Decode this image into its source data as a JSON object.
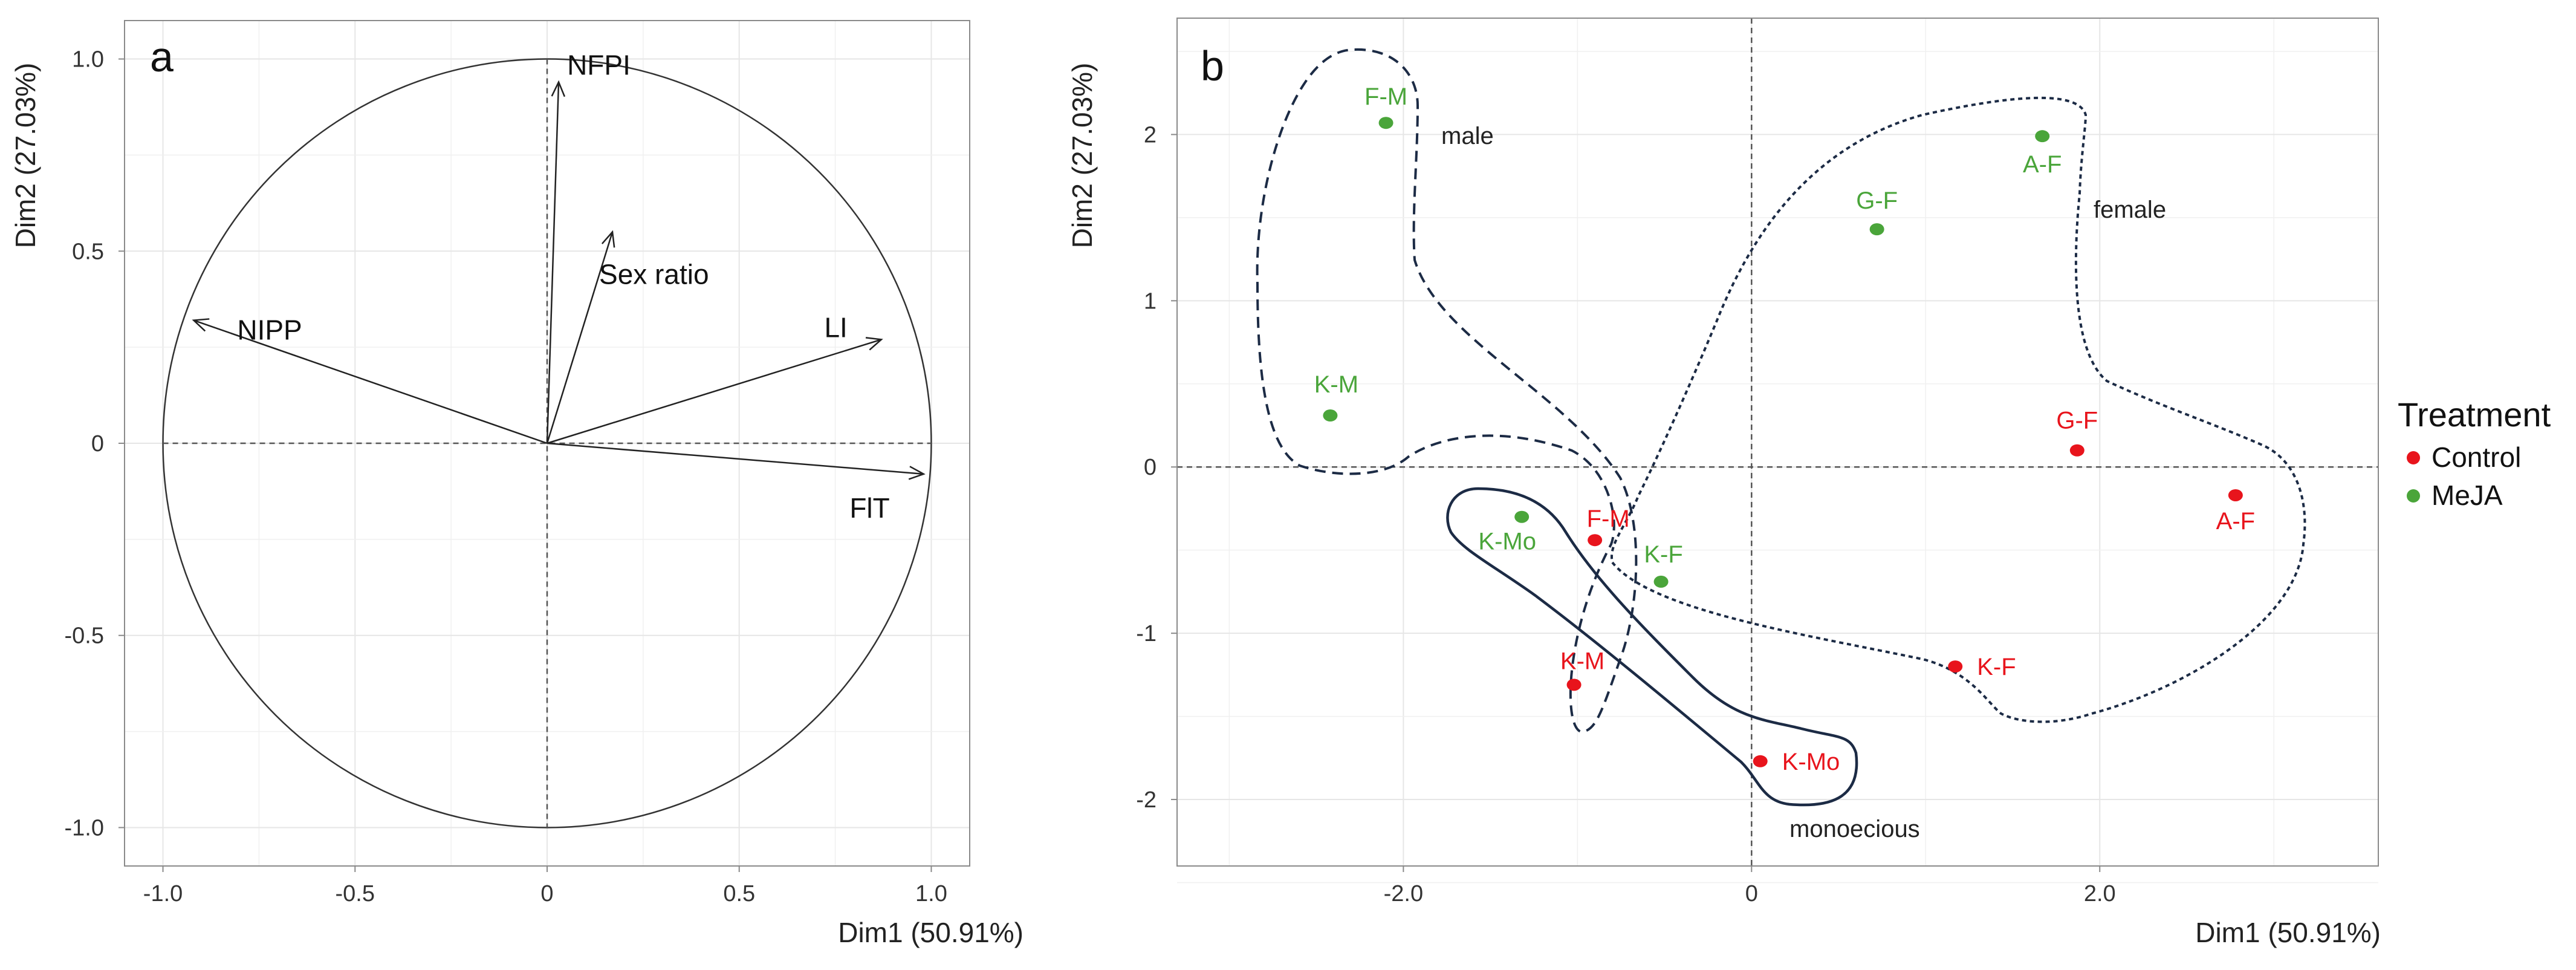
{
  "colors": {
    "control": "#e8141c",
    "meja": "#4aa53a",
    "hull": "#1c2b45",
    "grid": "#e6e6e6",
    "frame": "#8a8a8a",
    "ref": "#555555"
  },
  "chart_data": [
    {
      "panel": "a",
      "type": "scatter",
      "subtype": "correlation-circle",
      "xlabel": "Dim1 (50.91%)",
      "ylabel": "Dim2 (27.03%)",
      "xlim": [
        -1.1,
        1.1
      ],
      "ylim": [
        -1.1,
        1.1
      ],
      "xticks": [
        -1.0,
        -0.5,
        0,
        0.5,
        1.0
      ],
      "xtick_labels": [
        "-1.0",
        "-0.5",
        "0",
        "0.5",
        "1.0"
      ],
      "yticks": [
        -1.0,
        -0.5,
        0,
        0.5,
        1.0
      ],
      "ytick_labels": [
        "-1.0",
        "-0.5",
        "0",
        "0.5",
        "1.0"
      ],
      "grid": true,
      "vectors": [
        {
          "name": "NFPI",
          "x": 0.03,
          "y": 0.94
        },
        {
          "name": "Sex ratio",
          "x": 0.17,
          "y": 0.55
        },
        {
          "name": "NIPP",
          "x": -0.92,
          "y": 0.32
        },
        {
          "name": "LI",
          "x": 0.87,
          "y": 0.27
        },
        {
          "name": "FlT",
          "x": 0.98,
          "y": -0.08
        }
      ]
    },
    {
      "panel": "b",
      "type": "scatter",
      "xlabel": "Dim1 (50.91%)",
      "ylabel": "Dim2 (27.03%)",
      "xlim": [
        -3.3,
        3.6
      ],
      "ylim": [
        -2.4,
        2.7
      ],
      "xticks": [
        -2.0,
        0,
        2.0
      ],
      "xtick_labels": [
        "-2.0",
        "0",
        "2.0"
      ],
      "yticks": [
        -2,
        -1,
        0,
        1,
        2
      ],
      "ytick_labels": [
        "-2",
        "-1",
        "0",
        "1",
        "2"
      ],
      "grid": true,
      "legend": {
        "title": "Treatment",
        "position": "right",
        "items": [
          "Control",
          "MeJA"
        ]
      },
      "series": [
        {
          "name": "Control",
          "points": [
            {
              "label": "G-F",
              "x": 1.87,
              "y": 0.1
            },
            {
              "label": "A-F",
              "x": 2.78,
              "y": -0.17
            },
            {
              "label": "F-M",
              "x": -0.9,
              "y": -0.44
            },
            {
              "label": "K-F",
              "x": 1.17,
              "y": -1.2
            },
            {
              "label": "K-M",
              "x": -1.02,
              "y": -1.31
            },
            {
              "label": "K-Mo",
              "x": 0.05,
              "y": -1.77
            }
          ]
        },
        {
          "name": "MeJA",
          "points": [
            {
              "label": "F-M",
              "x": -2.1,
              "y": 2.07
            },
            {
              "label": "A-F",
              "x": 1.67,
              "y": 1.99
            },
            {
              "label": "G-F",
              "x": 0.72,
              "y": 1.43
            },
            {
              "label": "K-M",
              "x": -2.42,
              "y": 0.31
            },
            {
              "label": "K-Mo",
              "x": -1.32,
              "y": -0.3
            },
            {
              "label": "K-F",
              "x": -0.52,
              "y": -0.69
            }
          ]
        }
      ],
      "groups": [
        {
          "label": "male",
          "line": "dashed"
        },
        {
          "label": "female",
          "line": "dotted"
        },
        {
          "label": "monoecious",
          "line": "solid"
        }
      ]
    }
  ]
}
